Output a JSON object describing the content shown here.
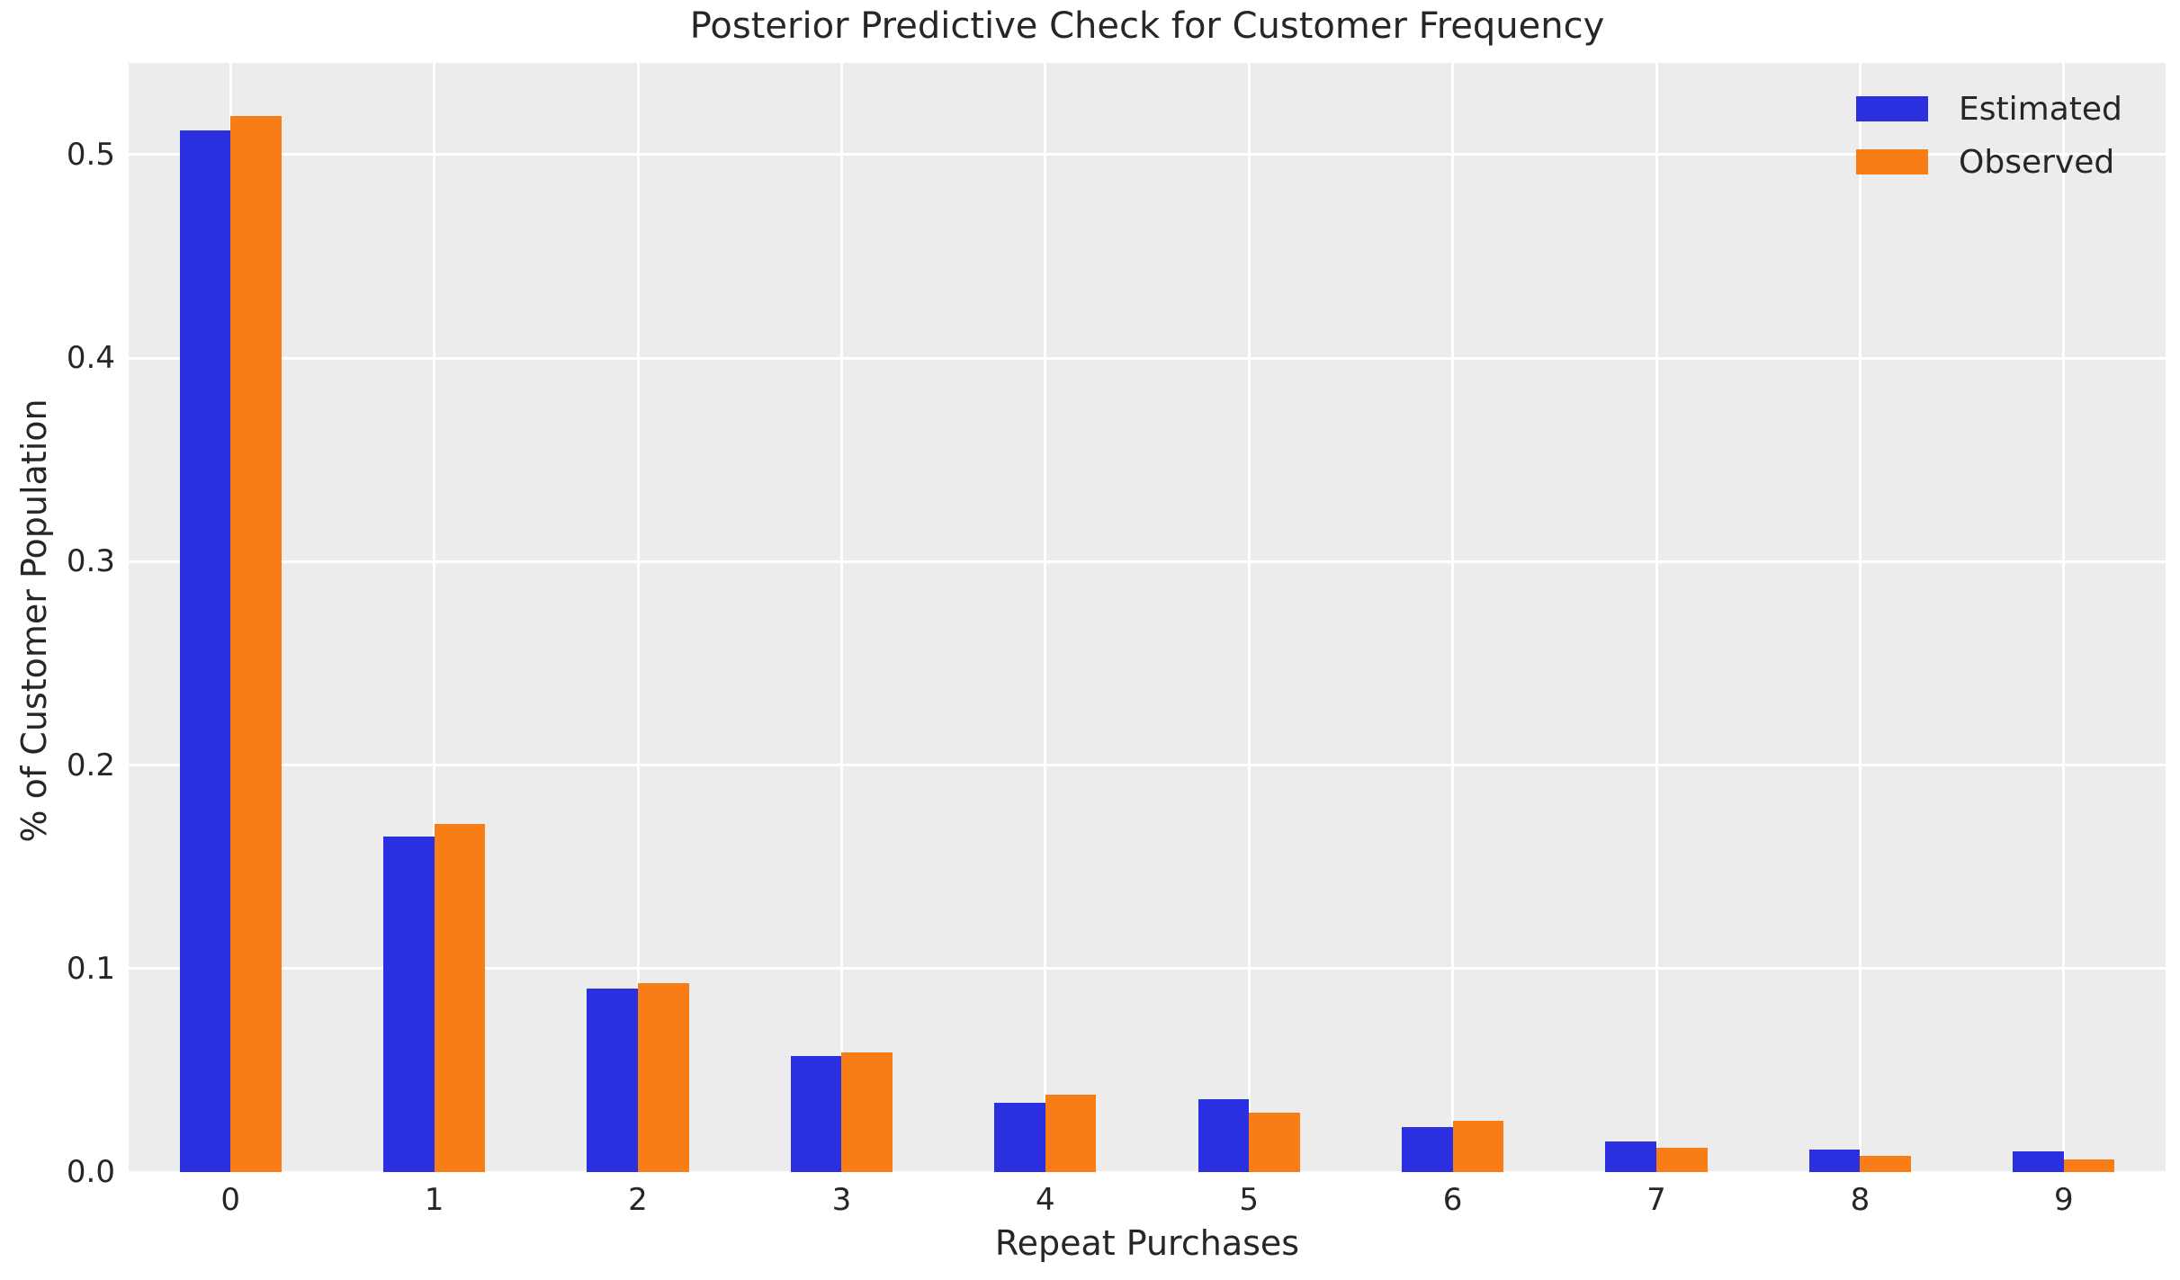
{
  "title": "Posterior Predictive Check for Customer Frequency",
  "x_axis_label": "Repeat Purchases",
  "y_axis_label": "% of Customer Population",
  "legend": {
    "items": [
      {
        "label": "Estimated",
        "color": "#2a2fe0"
      },
      {
        "label": "Observed",
        "color": "#f87d16"
      }
    ]
  },
  "chart_data": {
    "type": "bar",
    "title": "Posterior Predictive Check for Customer Frequency",
    "xlabel": "Repeat Purchases",
    "ylabel": "% of Customer Population",
    "categories": [
      "0",
      "1",
      "2",
      "3",
      "4",
      "5",
      "6",
      "7",
      "8",
      "9"
    ],
    "series": [
      {
        "name": "Estimated",
        "color": "#2a2fe0",
        "values": [
          0.512,
          0.165,
          0.09,
          0.057,
          0.034,
          0.036,
          0.022,
          0.015,
          0.011,
          0.01
        ]
      },
      {
        "name": "Observed",
        "color": "#f87d16",
        "values": [
          0.519,
          0.171,
          0.093,
          0.059,
          0.038,
          0.029,
          0.025,
          0.012,
          0.008,
          0.006
        ]
      }
    ],
    "yticks": [
      "0.0",
      "0.1",
      "0.2",
      "0.3",
      "0.4",
      "0.5"
    ],
    "ylim": [
      0,
      0.545
    ],
    "grid": "on",
    "grid_color": "#ffffff",
    "plot_background": "#ececec",
    "legend_position": "upper right",
    "bar_group_fraction": 0.5
  }
}
